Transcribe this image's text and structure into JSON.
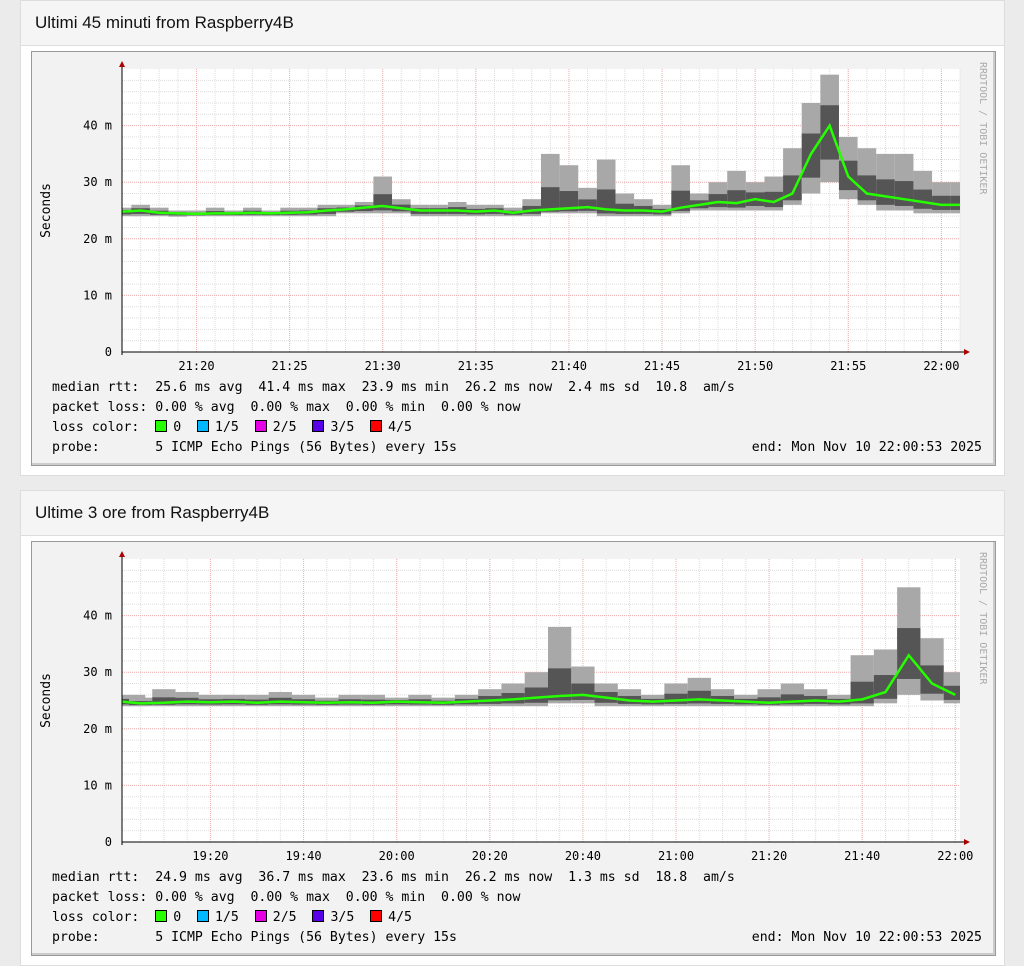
{
  "cards": [
    {
      "title": "Ultimi 45 minuti from Raspberry4B",
      "legend": {
        "median": "median rtt:  25.6 ms avg  41.4 ms max  23.9 ms min  26.2 ms now  2.4 ms sd  10.8  am/s",
        "loss": "packet loss: 0.00 % avg  0.00 % max  0.00 % min  0.00 % now",
        "loss_label": "loss color:  ",
        "probe": "probe:       5 ICMP Echo Pings (56 Bytes) every 15s",
        "end": "end: Mon Nov 10 22:00:53 2025"
      }
    },
    {
      "title": "Ultime 3 ore from Raspberry4B",
      "legend": {
        "median": "median rtt:  24.9 ms avg  36.7 ms max  23.6 ms min  26.2 ms now  1.3 ms sd  18.8  am/s",
        "loss": "packet loss: 0.00 % avg  0.00 % max  0.00 % min  0.00 % now",
        "loss_label": "loss color:  ",
        "probe": "probe:       5 ICMP Echo Pings (56 Bytes) every 15s",
        "end": "end: Mon Nov 10 22:00:53 2025"
      }
    }
  ],
  "loss_colors": [
    {
      "label": "0",
      "color": "#26ff00"
    },
    {
      "label": "1/5",
      "color": "#00b8ff"
    },
    {
      "label": "2/5",
      "color": "#e600e6"
    },
    {
      "label": "3/5",
      "color": "#5a00e6"
    },
    {
      "label": "4/5",
      "color": "#ff0000"
    }
  ],
  "watermark": "RRDTOOL / TOBI OETIKER",
  "chart_data": [
    {
      "type": "area",
      "ylabel": "Seconds",
      "ylim": [
        0,
        50
      ],
      "grid": true,
      "yticks": [
        "0",
        "10 m",
        "20 m",
        "30 m",
        "40 m"
      ],
      "ytick_values": [
        0,
        10,
        20,
        30,
        40
      ],
      "xticks": [
        "21:20",
        "21:25",
        "21:30",
        "21:35",
        "21:40",
        "21:45",
        "21:50",
        "21:55",
        "22:00"
      ],
      "xlim": [
        "21:16",
        "22:01"
      ],
      "x_step_min": 1,
      "x_start": "21:16",
      "median_ms": [
        24.8,
        25,
        24.6,
        24.5,
        24.4,
        24.5,
        24.5,
        24.6,
        24.5,
        24.6,
        24.7,
        25,
        25.2,
        25.5,
        25.8,
        25.4,
        25,
        25,
        25,
        24.8,
        25,
        24.6,
        25,
        25.2,
        25.4,
        25.6,
        25.2,
        25,
        25,
        24.8,
        25.5,
        26,
        26.5,
        26.3,
        27,
        26.5,
        28,
        35,
        40,
        31,
        28,
        27.5,
        27,
        26.5,
        26,
        26
      ],
      "max_ms": [
        25.5,
        26,
        25.5,
        25,
        25,
        25.5,
        25,
        25.5,
        25,
        25.5,
        25.5,
        26,
        26,
        26.5,
        31,
        27,
        26,
        26,
        26.5,
        26,
        26,
        25.5,
        27,
        35,
        33,
        29,
        34,
        28,
        27,
        26,
        33,
        28,
        30,
        32,
        30,
        31,
        36,
        44,
        49,
        38,
        36,
        35,
        35,
        32,
        30,
        30
      ],
      "min_ms": [
        24,
        24,
        24,
        23.9,
        24,
        24,
        24,
        24,
        24,
        24,
        24,
        24,
        24.5,
        24.5,
        24.5,
        24.5,
        24,
        24,
        24,
        24,
        24,
        24,
        24,
        24.5,
        24.5,
        24.5,
        24,
        24,
        24,
        24,
        24.5,
        25,
        25,
        25,
        25,
        25,
        26,
        28,
        30,
        27,
        26,
        25,
        25,
        24.5,
        24.5,
        24.5
      ]
    },
    {
      "type": "area",
      "ylabel": "Seconds",
      "ylim": [
        0,
        50
      ],
      "grid": true,
      "yticks": [
        "0",
        "10 m",
        "20 m",
        "30 m",
        "40 m"
      ],
      "ytick_values": [
        0,
        10,
        20,
        30,
        40
      ],
      "xticks": [
        "19:20",
        "19:40",
        "20:00",
        "20:20",
        "20:40",
        "21:00",
        "21:20",
        "21:40",
        "22:00"
      ],
      "xlim": [
        "19:01",
        "22:01"
      ],
      "x_step_min": 5,
      "x_start": "19:00",
      "median_ms": [
        24.8,
        24.5,
        24.6,
        24.8,
        24.7,
        24.8,
        24.6,
        24.8,
        24.7,
        24.6,
        24.7,
        24.6,
        24.8,
        24.7,
        24.6,
        24.8,
        25,
        25.2,
        25.5,
        25.8,
        26,
        25.5,
        25,
        24.8,
        25,
        25.2,
        25,
        24.8,
        24.6,
        24.8,
        25,
        24.8,
        25.2,
        26.5,
        33,
        28,
        26
      ],
      "max_ms": [
        26,
        25.5,
        27,
        26.5,
        26,
        26,
        26,
        26.5,
        26,
        25.5,
        26,
        26,
        25.5,
        26,
        25.5,
        26,
        27,
        28,
        30,
        38,
        31,
        28,
        27,
        26,
        28,
        29,
        27,
        26,
        27,
        28,
        27,
        26,
        33,
        34,
        45,
        36,
        30
      ],
      "min_ms": [
        24,
        24,
        24,
        24,
        24,
        24,
        24,
        24,
        24,
        24,
        24,
        24,
        24,
        24,
        24,
        24,
        24,
        24,
        24,
        24.5,
        24.5,
        24,
        24,
        24,
        24,
        24,
        24,
        24,
        24,
        24,
        24,
        24,
        24,
        24.5,
        26,
        25,
        24.5
      ]
    }
  ]
}
